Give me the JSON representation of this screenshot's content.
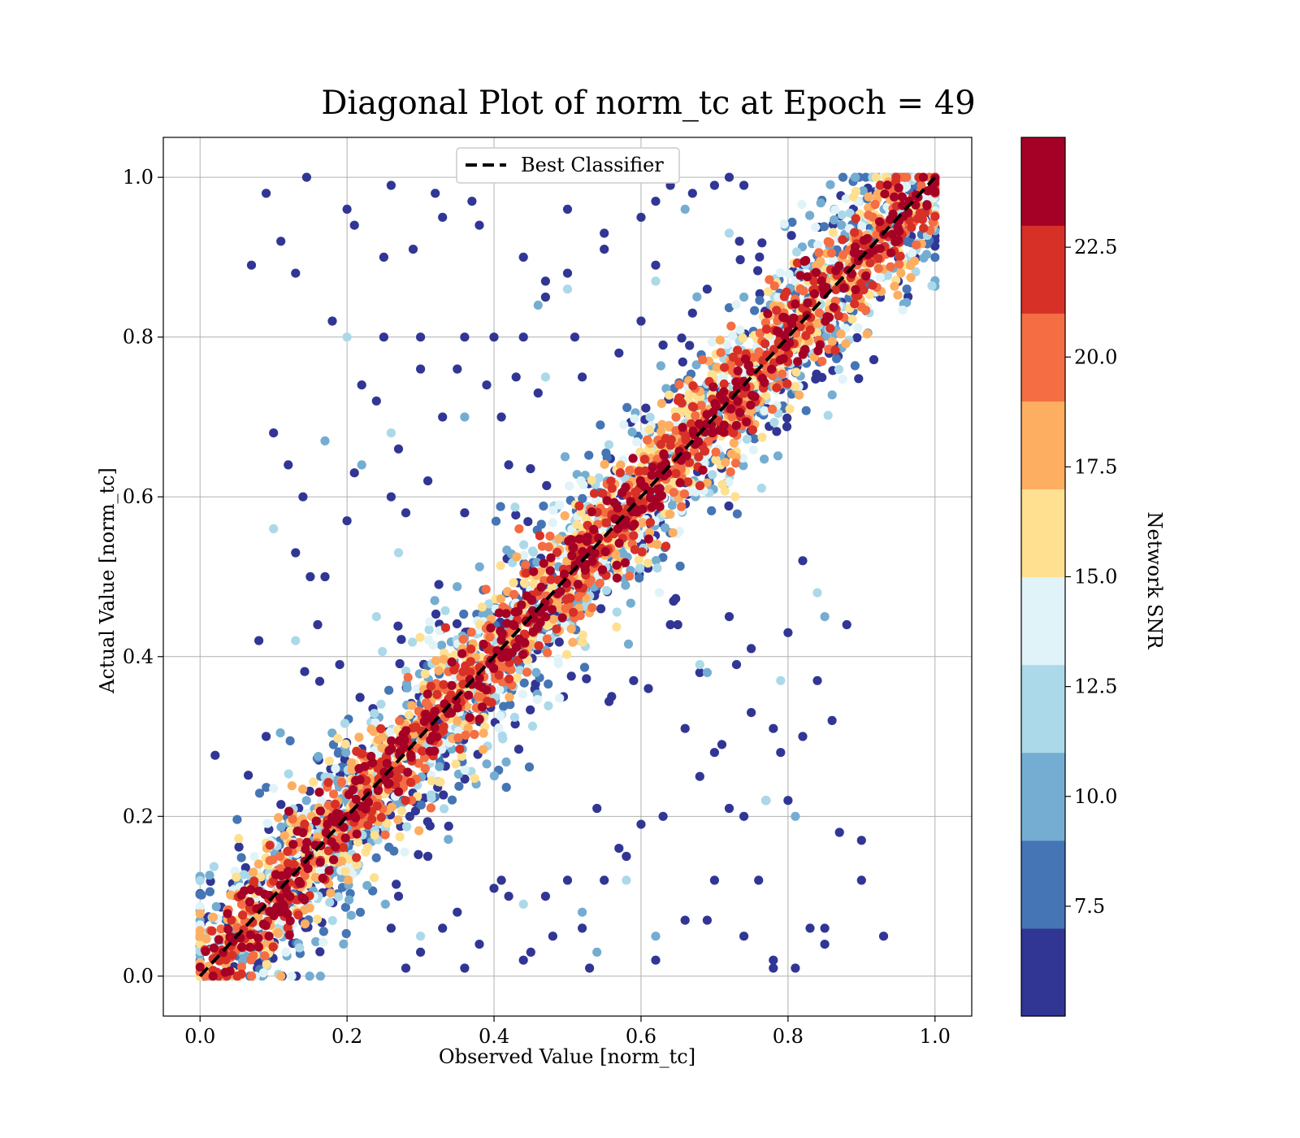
{
  "chart_data": {
    "type": "scatter",
    "title": "Diagonal Plot of norm_tc at Epoch = 49",
    "xlabel": "Observed Value [norm_tc]",
    "ylabel": "Actual Value [norm_tc]",
    "xlim": [
      -0.05,
      1.05
    ],
    "ylim": [
      -0.05,
      1.05
    ],
    "xticks": [
      0.0,
      0.2,
      0.4,
      0.6,
      0.8,
      1.0
    ],
    "yticks": [
      0.0,
      0.2,
      0.4,
      0.6,
      0.8,
      1.0
    ],
    "xtick_labels": [
      "0.0",
      "0.2",
      "0.4",
      "0.6",
      "0.8",
      "1.0"
    ],
    "ytick_labels": [
      "0.0",
      "0.2",
      "0.4",
      "0.6",
      "0.8",
      "1.0"
    ],
    "grid": true,
    "legend": {
      "position": "top-center",
      "entries": [
        "Best Classifier"
      ]
    },
    "reference_line": {
      "name": "Best Classifier",
      "style": "dashed",
      "color": "#000000",
      "x": [
        0.0,
        1.0
      ],
      "y": [
        0.0,
        1.0
      ]
    },
    "colorbar": {
      "label": "Network SNR",
      "range": [
        5.0,
        25.0
      ],
      "levels": 10,
      "ticks": [
        7.5,
        10.0,
        12.5,
        15.0,
        17.5,
        20.0,
        22.5
      ],
      "tick_labels": [
        "7.5",
        "10.0",
        "12.5",
        "15.0",
        "17.5",
        "20.0",
        "22.5"
      ],
      "colors": [
        "#313695",
        "#4575b4",
        "#74add1",
        "#abd9e9",
        "#e0f3f8",
        "#fee090",
        "#fdae61",
        "#f46d43",
        "#d73027",
        "#a50026"
      ]
    },
    "series": [
      {
        "x": [
          0.07,
          0.09,
          0.11,
          0.13,
          0.145,
          0.2,
          0.21,
          0.25,
          0.26,
          0.29,
          0.32,
          0.33,
          0.37,
          0.38,
          0.25,
          0.3,
          0.36,
          0.4,
          0.44,
          0.47,
          0.5,
          0.55,
          0.6,
          0.62,
          0.64,
          0.67,
          0.7,
          0.72,
          0.74,
          0.5,
          0.55,
          0.62,
          0.44,
          0.47,
          0.51,
          0.6,
          0.63,
          0.67,
          0.69,
          0.18,
          0.2,
          0.21,
          0.17,
          0.15,
          0.1,
          0.12,
          0.14,
          0.08,
          0.09,
          0.22,
          0.24,
          0.27,
          0.3,
          0.33,
          0.35,
          0.39,
          0.41,
          0.43,
          0.46,
          0.52,
          0.57,
          0.13,
          0.16,
          0.19,
          0.26,
          0.28,
          0.31,
          0.36,
          0.42,
          0.65,
          0.68,
          0.72,
          0.75,
          0.78,
          0.8,
          0.82,
          0.84,
          0.86,
          0.88,
          0.77,
          0.8,
          0.85,
          0.9,
          0.93,
          0.72,
          0.74,
          0.76,
          0.78,
          0.81,
          0.83,
          0.7,
          0.66,
          0.62,
          0.58,
          0.55,
          0.52,
          0.48,
          0.45,
          0.42,
          0.4,
          0.38,
          0.36,
          0.33,
          0.3,
          0.28,
          0.26,
          0.6,
          0.57,
          0.54,
          0.5,
          0.47,
          0.44,
          0.53,
          0.63,
          0.68,
          0.71,
          0.56,
          0.59,
          0.64,
          0.48,
          0.41,
          0.35,
          0.31,
          0.27,
          0.69,
          0.73,
          0.61,
          0.66,
          0.7,
          0.75,
          0.79,
          0.82,
          0.85,
          0.87,
          0.9,
          0.78,
          0.74
        ],
        "y": [
          0.89,
          0.98,
          0.92,
          0.88,
          1.0,
          0.96,
          0.94,
          0.9,
          0.99,
          0.91,
          0.98,
          0.95,
          0.97,
          0.94,
          0.8,
          0.8,
          0.8,
          0.8,
          0.9,
          0.87,
          0.88,
          0.93,
          0.95,
          0.97,
          0.99,
          0.98,
          0.99,
          1.0,
          0.99,
          0.96,
          0.91,
          0.89,
          0.8,
          0.85,
          0.8,
          0.82,
          0.79,
          0.83,
          0.86,
          0.82,
          0.57,
          0.63,
          0.5,
          0.5,
          0.68,
          0.64,
          0.6,
          0.42,
          0.3,
          0.74,
          0.72,
          0.66,
          0.76,
          0.7,
          0.76,
          0.74,
          0.7,
          0.75,
          0.73,
          0.75,
          0.78,
          0.53,
          0.44,
          0.39,
          0.6,
          0.58,
          0.62,
          0.58,
          0.64,
          0.44,
          0.38,
          0.45,
          0.41,
          0.31,
          0.43,
          0.52,
          0.37,
          0.32,
          0.44,
          0.22,
          0.22,
          0.06,
          0.17,
          0.05,
          0.21,
          0.2,
          0.12,
          0.01,
          0.01,
          0.06,
          0.12,
          0.07,
          0.02,
          0.15,
          0.12,
          0.06,
          0.05,
          0.03,
          0.1,
          0.11,
          0.04,
          0.01,
          0.06,
          0.03,
          0.01,
          0.06,
          0.19,
          0.16,
          0.21,
          0.12,
          0.1,
          0.02,
          0.01,
          0.2,
          0.25,
          0.29,
          0.35,
          0.37,
          0.44,
          0.45,
          0.12,
          0.08,
          0.15,
          0.1,
          0.07,
          0.39,
          0.36,
          0.31,
          0.28,
          0.33,
          0.28,
          0.3,
          0.04,
          0.18,
          0.12,
          0.02,
          0.05
        ],
        "snr": [
          6,
          5.5,
          6,
          6.5,
          5.2,
          6,
          5.8,
          6.2,
          5.5,
          6,
          5.6,
          6.3,
          5.9,
          6.1,
          5.5,
          6.4,
          5.8,
          6,
          5.7,
          6.2,
          6,
          5.9,
          6.1,
          5.6,
          6.3,
          5.8,
          6,
          6.2,
          5.9,
          6.1,
          6,
          5.8,
          6.2,
          6,
          5.9,
          6.1,
          5.7,
          6,
          6.3,
          6,
          6.4,
          5.9,
          6.2,
          5.8,
          6,
          6.1,
          5.7,
          6,
          5.9,
          6.2,
          6.1,
          5.8,
          6,
          6.3,
          5.9,
          6,
          6.2,
          5.8,
          6.1,
          6,
          5.9,
          6.2,
          6,
          5.8,
          6.1,
          6,
          5.9,
          6.2,
          6,
          6.1,
          5.8,
          6,
          6.2,
          5.9,
          6,
          6.1,
          5.8,
          6,
          6.2,
          5.9,
          6,
          6.1,
          5.8,
          6,
          6.2,
          5.9,
          6,
          6.1,
          5.8,
          6,
          6.2,
          5.9,
          6,
          6.1,
          5.8,
          6,
          6.2,
          5.9,
          6,
          6.1,
          5.8,
          6,
          6.2,
          5.9,
          6,
          6.1,
          5.8,
          6,
          6.2,
          5.9,
          6,
          6.1,
          5.8,
          6,
          6.2,
          5.9,
          6,
          6.1,
          5.8,
          6,
          6.2,
          5.9,
          6,
          6.1,
          5.8,
          6,
          6.2,
          5.9,
          6,
          6.1,
          5.8,
          6,
          6.2,
          5.9,
          6,
          6.1,
          5.8
        ],
        "note": ""
      },
      {
        "x": [
          0.2,
          0.1,
          0.17,
          0.26,
          0.24,
          0.47,
          0.5,
          0.66,
          0.68,
          0.62,
          0.36,
          0.58,
          0.85,
          0.3,
          0.52,
          0.54,
          0.77,
          0.72,
          0.46,
          0.44,
          0.69,
          0.79,
          0.13,
          0.22,
          0.27,
          0.81,
          0.84,
          0.74,
          0.56,
          0.62,
          0.35
        ],
        "y": [
          0.8,
          0.56,
          0.67,
          0.68,
          0.45,
          0.75,
          0.86,
          0.96,
          0.39,
          0.87,
          0.7,
          0.12,
          0.45,
          0.05,
          0.08,
          0.03,
          0.22,
          0.93,
          0.84,
          0.09,
          0.38,
          0.37,
          0.42,
          0.64,
          0.53,
          0.2,
          0.48,
          0.85,
          0.6,
          0.05,
          0.35
        ],
        "snr": [
          11.5,
          11.5,
          10,
          11,
          11.3,
          11.5,
          12,
          10.8,
          11.3,
          11,
          10.5,
          11.2,
          10.4,
          11.6,
          10.9,
          10.2,
          11.1,
          11.4,
          10.7,
          11,
          10.6,
          11.8,
          11.2,
          10.9,
          11.3,
          10.5,
          11,
          10.8,
          11.4,
          10.6,
          11.2
        ]
      }
    ]
  }
}
